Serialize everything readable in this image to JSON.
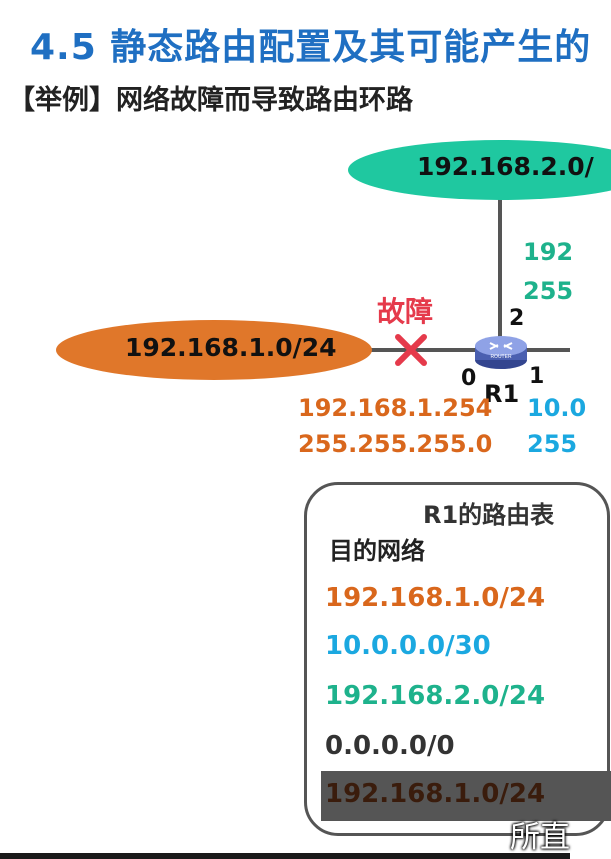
{
  "title": "4.5  静态路由配置及其可能产生的",
  "subtitle": "【举例】网络故障而导致路由环路",
  "diagram": {
    "networks": {
      "left": "192.168.1.0/24",
      "top": "192.168.2.0/"
    },
    "fault_label": "故障",
    "router": {
      "name": "R1",
      "icon_text": "ROUTER",
      "ports": {
        "p0": "0",
        "p1": "1",
        "p2": "2"
      }
    },
    "interfaces": {
      "left": {
        "address": "192.168.1.254",
        "mask": "255.255.255.0"
      },
      "top": {
        "address": "192",
        "mask": "255"
      },
      "right": {
        "address": "10.0",
        "mask": "255"
      }
    },
    "colors": {
      "title": "#1f6fc2",
      "left_net": "#e0772a",
      "top_net": "#1fc8a0",
      "fault": "#e53a4b",
      "link": "#555555",
      "router": "#4a5fb0"
    }
  },
  "route_table": {
    "title": "R1的路由表",
    "header": "目的网络",
    "rows": [
      "192.168.1.0/24",
      "10.0.0.0/30",
      "192.168.2.0/24",
      "0.0.0.0/0",
      "192.168.1.0/24"
    ]
  },
  "caption": "所直"
}
